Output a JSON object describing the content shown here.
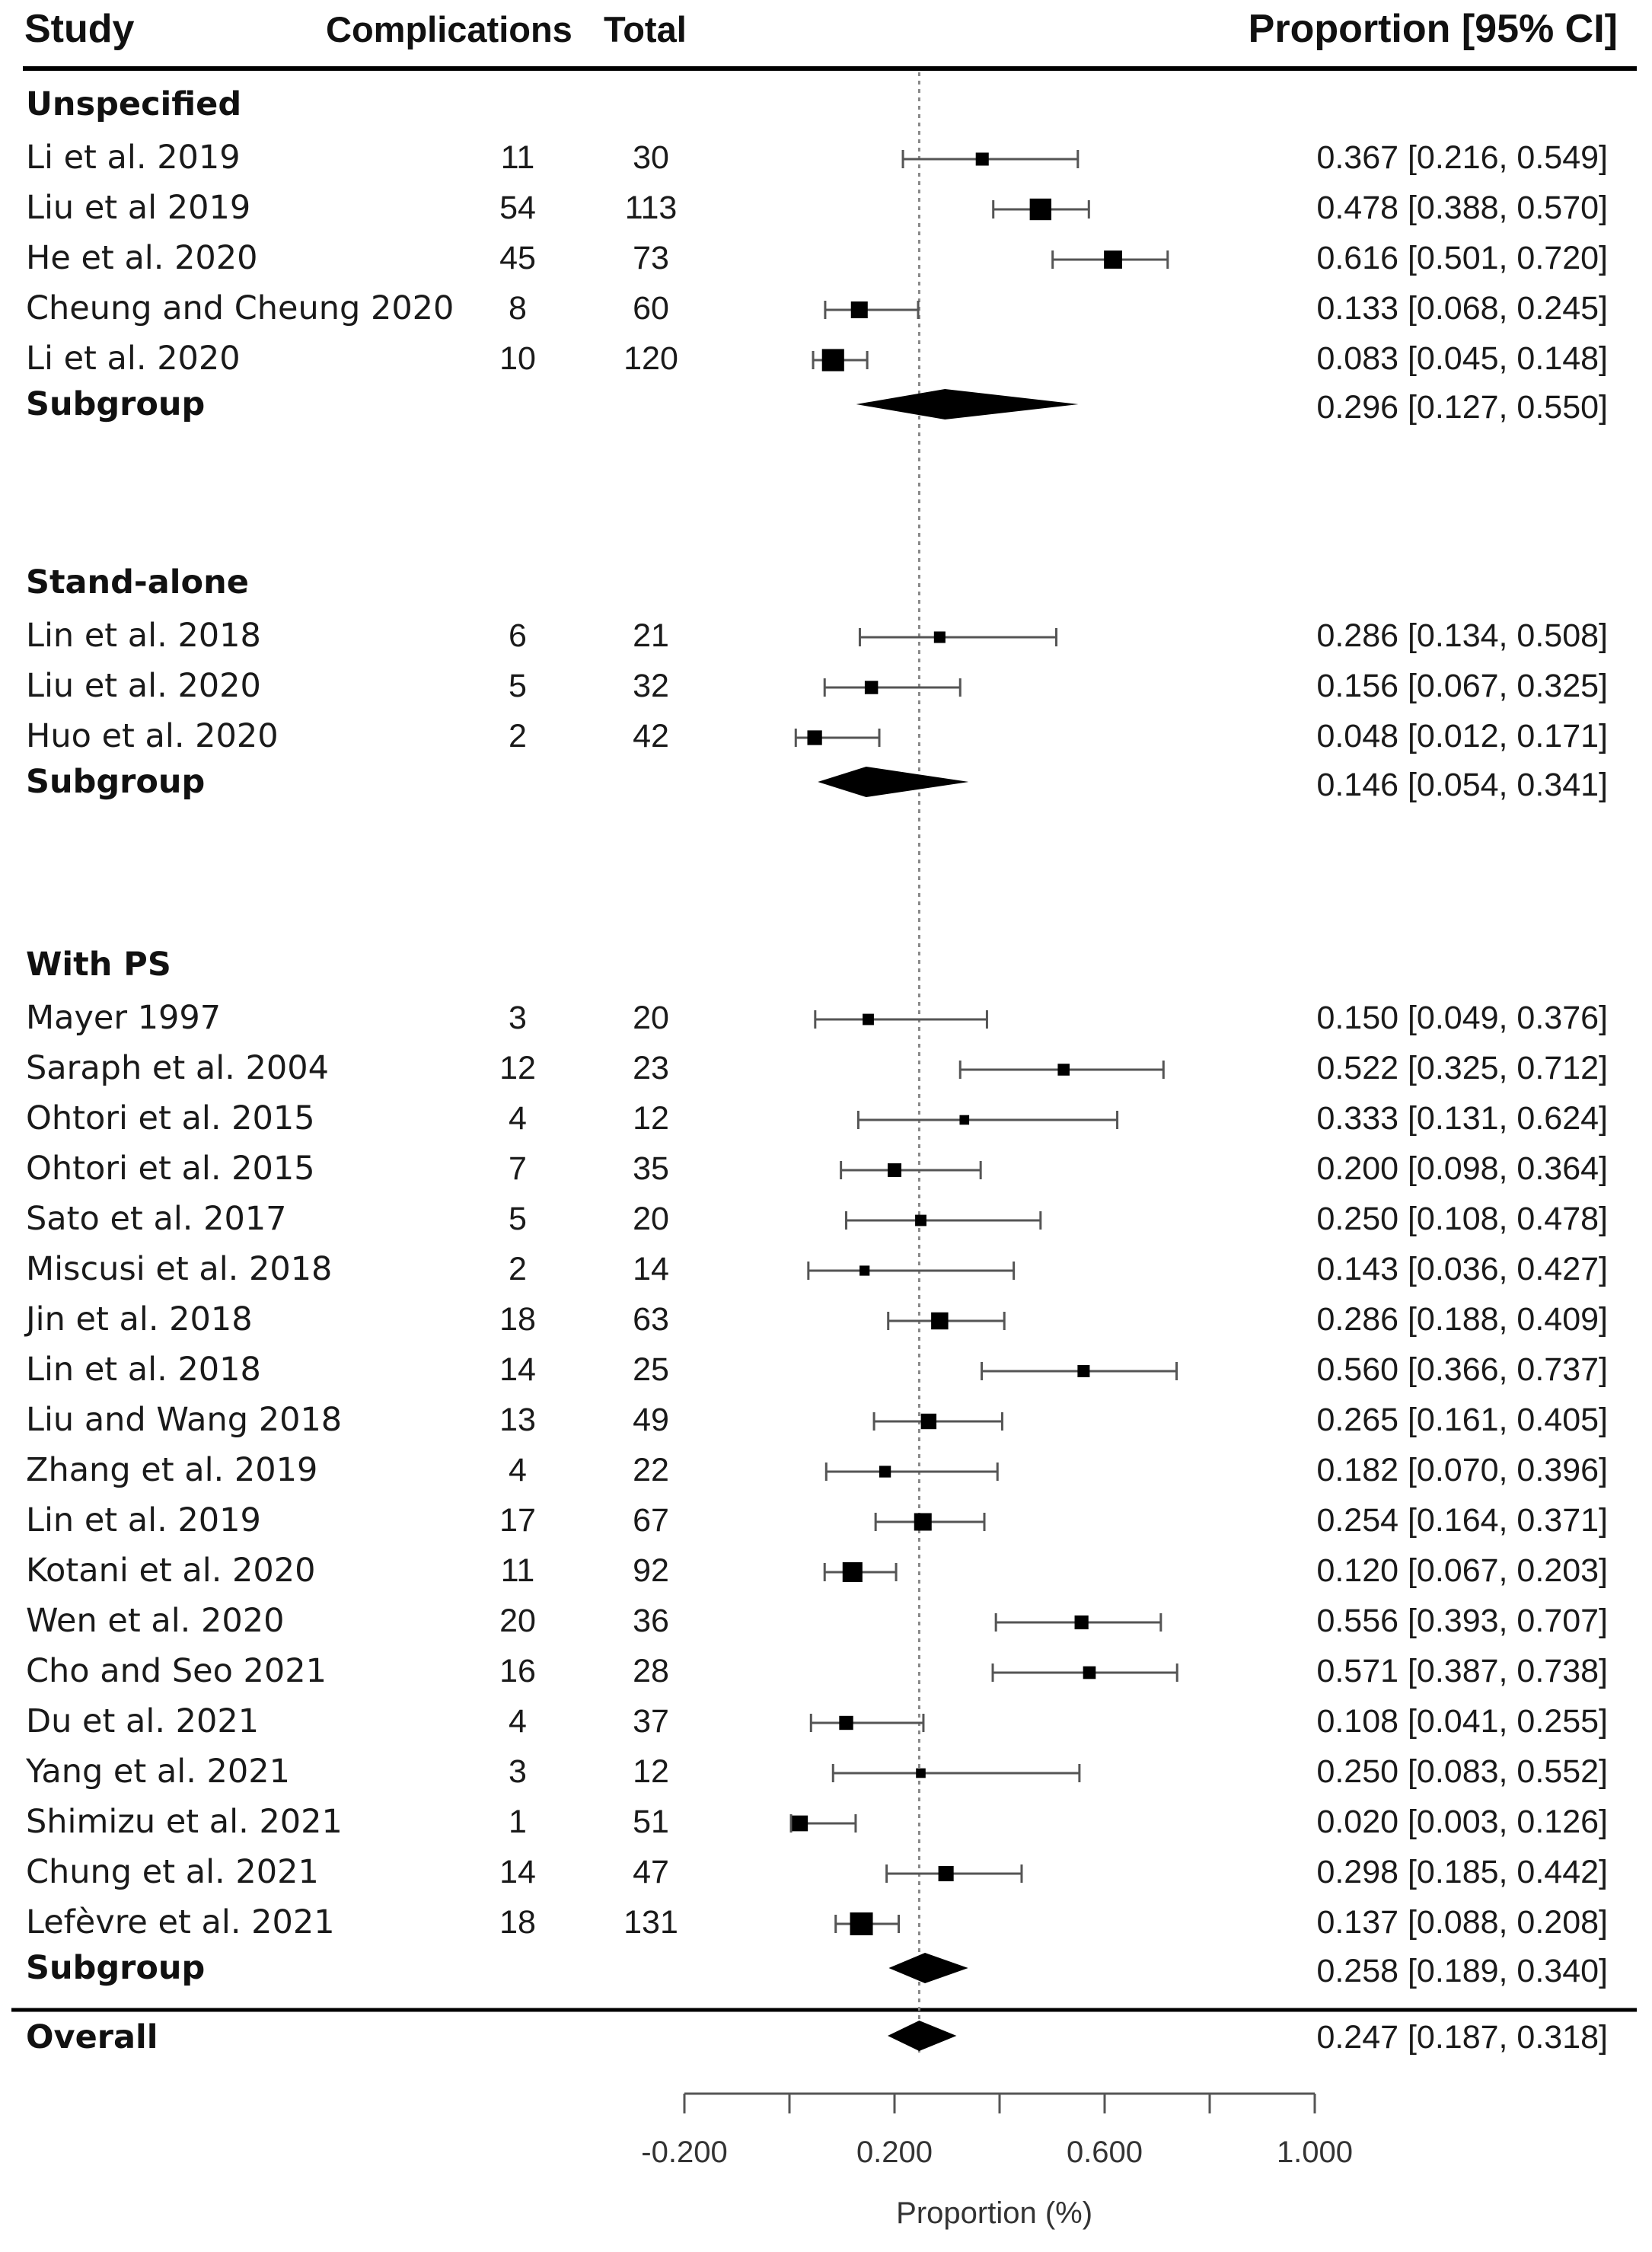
{
  "header": {
    "study": "Study",
    "complications": "Complications",
    "total": "Total",
    "proportion": "Proportion [95% CI]"
  },
  "chart_data": {
    "type": "forest",
    "xlabel": "Proportion (%)",
    "xlim": [
      -0.2,
      1.0
    ],
    "ticks": [
      -0.2,
      0.0,
      0.2,
      0.4,
      0.6,
      0.8,
      1.0
    ],
    "tick_labels": [
      "-0.200",
      "0.200",
      "0.600",
      "1.000"
    ],
    "tick_label_values": [
      -0.2,
      0.2,
      0.6,
      1.0
    ],
    "reference_line": 0.247,
    "groups": [
      {
        "name": "Unspecified",
        "studies": [
          {
            "study": "Li et al. 2019",
            "complications": "11",
            "total": "30",
            "est": 0.367,
            "lo": 0.216,
            "hi": 0.549,
            "ci_text": "0.367 [0.216, 0.549]"
          },
          {
            "study": "Liu et al 2019",
            "complications": "54",
            "total": "113",
            "est": 0.478,
            "lo": 0.388,
            "hi": 0.57,
            "ci_text": "0.478 [0.388, 0.570]"
          },
          {
            "study": "He et al. 2020",
            "complications": "45",
            "total": "73",
            "est": 0.616,
            "lo": 0.501,
            "hi": 0.72,
            "ci_text": "0.616 [0.501, 0.720]"
          },
          {
            "study": "Cheung and Cheung 2020",
            "complications": "8",
            "total": "60",
            "est": 0.133,
            "lo": 0.068,
            "hi": 0.245,
            "ci_text": "0.133 [0.068, 0.245]"
          },
          {
            "study": "Li et al. 2020",
            "complications": "10",
            "total": "120",
            "est": 0.083,
            "lo": 0.045,
            "hi": 0.148,
            "ci_text": "0.083 [0.045, 0.148]"
          }
        ],
        "subgroup": {
          "label": "Subgroup",
          "est": 0.296,
          "lo": 0.127,
          "hi": 0.55,
          "ci_text": "0.296 [0.127, 0.550]"
        }
      },
      {
        "name": "Stand-alone",
        "studies": [
          {
            "study": "Lin et al. 2018",
            "complications": "6",
            "total": "21",
            "est": 0.286,
            "lo": 0.134,
            "hi": 0.508,
            "ci_text": "0.286 [0.134, 0.508]"
          },
          {
            "study": "Liu et al. 2020",
            "complications": "5",
            "total": "32",
            "est": 0.156,
            "lo": 0.067,
            "hi": 0.325,
            "ci_text": "0.156 [0.067, 0.325]"
          },
          {
            "study": "Huo et al. 2020",
            "complications": "2",
            "total": "42",
            "est": 0.048,
            "lo": 0.012,
            "hi": 0.171,
            "ci_text": "0.048 [0.012, 0.171]"
          }
        ],
        "subgroup": {
          "label": "Subgroup",
          "est": 0.146,
          "lo": 0.054,
          "hi": 0.341,
          "ci_text": "0.146 [0.054, 0.341]"
        }
      },
      {
        "name": "With PS",
        "studies": [
          {
            "study": "Mayer 1997",
            "complications": "3",
            "total": "20",
            "est": 0.15,
            "lo": 0.049,
            "hi": 0.376,
            "ci_text": "0.150 [0.049, 0.376]"
          },
          {
            "study": "Saraph et al. 2004",
            "complications": "12",
            "total": "23",
            "est": 0.522,
            "lo": 0.325,
            "hi": 0.712,
            "ci_text": "0.522 [0.325, 0.712]"
          },
          {
            "study": "Ohtori et al. 2015",
            "complications": "4",
            "total": "12",
            "est": 0.333,
            "lo": 0.131,
            "hi": 0.624,
            "ci_text": "0.333 [0.131, 0.624]"
          },
          {
            "study": "Ohtori et al. 2015",
            "complications": "7",
            "total": "35",
            "est": 0.2,
            "lo": 0.098,
            "hi": 0.364,
            "ci_text": "0.200 [0.098, 0.364]"
          },
          {
            "study": "Sato et al. 2017",
            "complications": "5",
            "total": "20",
            "est": 0.25,
            "lo": 0.108,
            "hi": 0.478,
            "ci_text": "0.250 [0.108, 0.478]"
          },
          {
            "study": "Miscusi et al. 2018",
            "complications": "2",
            "total": "14",
            "est": 0.143,
            "lo": 0.036,
            "hi": 0.427,
            "ci_text": "0.143 [0.036, 0.427]"
          },
          {
            "study": "Jin et al. 2018",
            "complications": "18",
            "total": "63",
            "est": 0.286,
            "lo": 0.188,
            "hi": 0.409,
            "ci_text": "0.286 [0.188, 0.409]"
          },
          {
            "study": "Lin et al. 2018",
            "complications": "14",
            "total": "25",
            "est": 0.56,
            "lo": 0.366,
            "hi": 0.737,
            "ci_text": "0.560 [0.366, 0.737]"
          },
          {
            "study": "Liu and Wang 2018",
            "complications": "13",
            "total": "49",
            "est": 0.265,
            "lo": 0.161,
            "hi": 0.405,
            "ci_text": "0.265 [0.161, 0.405]"
          },
          {
            "study": "Zhang et al. 2019",
            "complications": "4",
            "total": "22",
            "est": 0.182,
            "lo": 0.07,
            "hi": 0.396,
            "ci_text": "0.182 [0.070, 0.396]"
          },
          {
            "study": "Lin et al. 2019",
            "complications": "17",
            "total": "67",
            "est": 0.254,
            "lo": 0.164,
            "hi": 0.371,
            "ci_text": "0.254 [0.164, 0.371]"
          },
          {
            "study": "Kotani et al. 2020",
            "complications": "11",
            "total": "92",
            "est": 0.12,
            "lo": 0.067,
            "hi": 0.203,
            "ci_text": "0.120 [0.067, 0.203]"
          },
          {
            "study": "Wen et al. 2020",
            "complications": "20",
            "total": "36",
            "est": 0.556,
            "lo": 0.393,
            "hi": 0.707,
            "ci_text": "0.556 [0.393, 0.707]"
          },
          {
            "study": "Cho and Seo 2021",
            "complications": "16",
            "total": "28",
            "est": 0.571,
            "lo": 0.387,
            "hi": 0.738,
            "ci_text": "0.571 [0.387, 0.738]"
          },
          {
            "study": "Du et al. 2021",
            "complications": "4",
            "total": "37",
            "est": 0.108,
            "lo": 0.041,
            "hi": 0.255,
            "ci_text": "0.108 [0.041, 0.255]"
          },
          {
            "study": "Yang et al. 2021",
            "complications": "3",
            "total": "12",
            "est": 0.25,
            "lo": 0.083,
            "hi": 0.552,
            "ci_text": "0.250 [0.083, 0.552]"
          },
          {
            "study": "Shimizu et al. 2021",
            "complications": "1",
            "total": "51",
            "est": 0.02,
            "lo": 0.003,
            "hi": 0.126,
            "ci_text": "0.020 [0.003, 0.126]"
          },
          {
            "study": "Chung et al. 2021",
            "complications": "14",
            "total": "47",
            "est": 0.298,
            "lo": 0.185,
            "hi": 0.442,
            "ci_text": "0.298 [0.185, 0.442]"
          },
          {
            "study": "Lefèvre et al. 2021",
            "complications": "18",
            "total": "131",
            "est": 0.137,
            "lo": 0.088,
            "hi": 0.208,
            "ci_text": "0.137 [0.088, 0.208]"
          }
        ],
        "subgroup": {
          "label": "Subgroup",
          "est": 0.258,
          "lo": 0.189,
          "hi": 0.34,
          "ci_text": "0.258 [0.189, 0.340]"
        }
      }
    ],
    "overall": {
      "label": "Overall",
      "est": 0.247,
      "lo": 0.187,
      "hi": 0.318,
      "ci_text": "0.247 [0.187, 0.318]"
    }
  }
}
